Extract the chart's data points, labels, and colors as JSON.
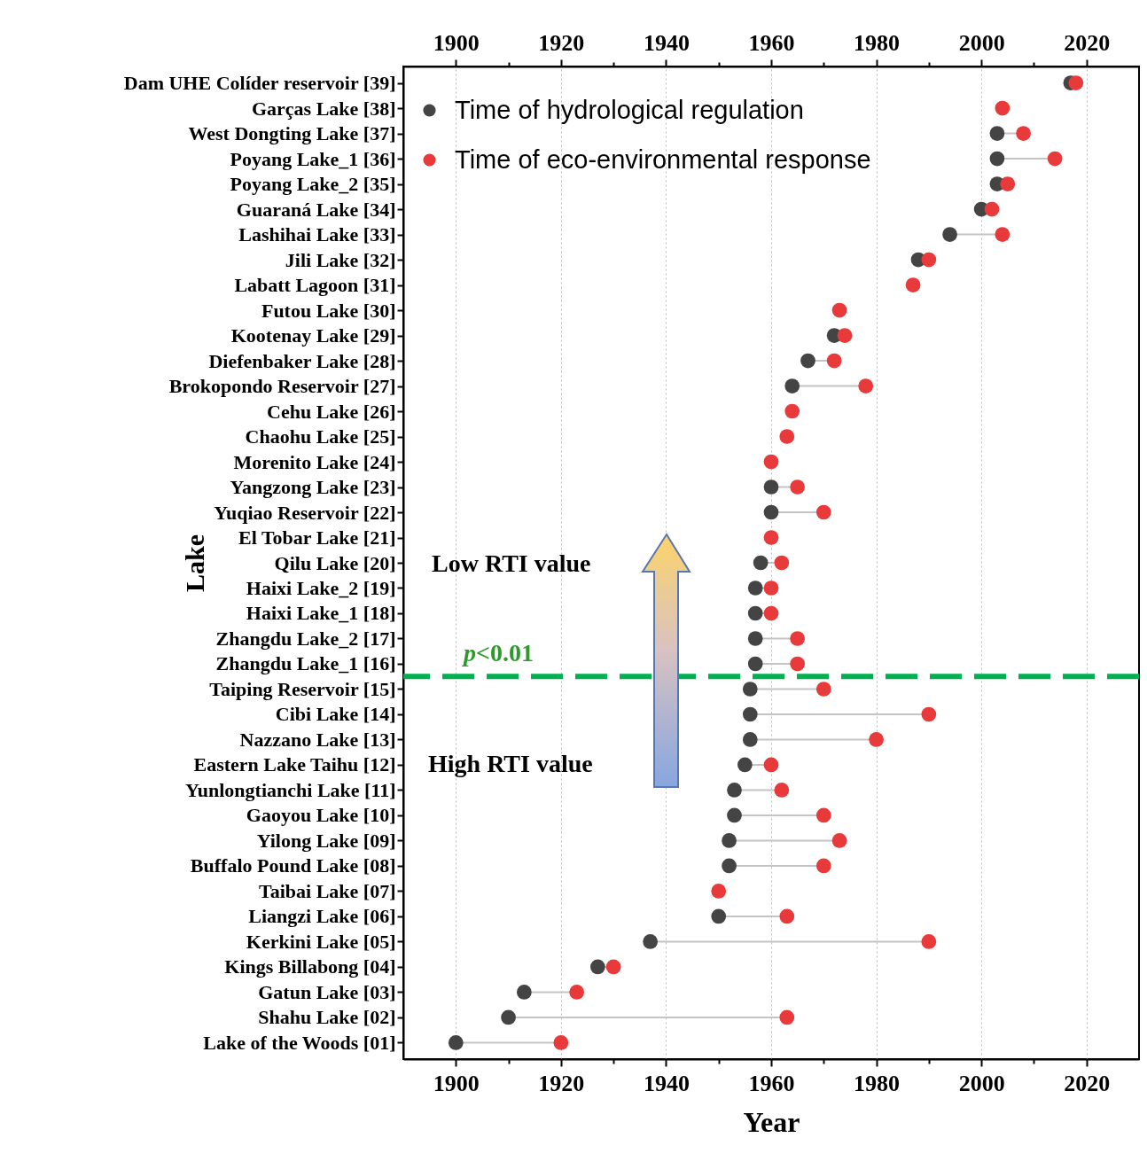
{
  "chart_data": {
    "type": "scatter",
    "xlabel": "Year",
    "ylabel": "Lake",
    "categories": [
      "Dam UHE Colíder reservoir [39]",
      "Garças Lake [38]",
      "West Dongting Lake [37]",
      "Poyang Lake_1 [36]",
      "Poyang Lake_2 [35]",
      "Guaraná Lake [34]",
      "Lashihai Lake [33]",
      "Jili Lake [32]",
      "Labatt Lagoon [31]",
      "Futou Lake [30]",
      "Kootenay Lake [29]",
      "Diefenbaker Lake [28]",
      "Brokopondo Reservoir [27]",
      "Cehu Lake [26]",
      "Chaohu Lake [25]",
      "Morenito Lake [24]",
      "Yangzong Lake [23]",
      "Yuqiao Reservoir [22]",
      "El Tobar Lake [21]",
      "Qilu Lake [20]",
      "Haixi Lake_2 [19]",
      "Haixi Lake_1 [18]",
      "Zhangdu Lake_2 [17]",
      "Zhangdu Lake_1 [16]",
      "Taiping Reservoir [15]",
      "Cibi Lake [14]",
      "Nazzano Lake [13]",
      "Eastern Lake Taihu [12]",
      "Yunlongtianchi Lake [11]",
      "Gaoyou Lake [10]",
      "Yilong Lake [09]",
      "Buffalo Pound Lake [08]",
      "Taibai Lake [07]",
      "Liangzi Lake [06]",
      "Kerkini Lake [05]",
      "Kings Billabong [04]",
      "Gatun Lake [03]",
      "Shahu Lake [02]",
      "Lake of the Woods [01]"
    ],
    "series": [
      {
        "name": "Time of hydrological regulation",
        "color": "#444444",
        "values": [
          2017,
          null,
          2003,
          2003,
          2003,
          2000,
          1994,
          1988,
          null,
          null,
          1972,
          1967,
          1964,
          null,
          null,
          null,
          1960,
          1960,
          null,
          1958,
          1957,
          1957,
          1957,
          1957,
          1956,
          1956,
          1956,
          1955,
          1953,
          1953,
          1952,
          1952,
          null,
          1950,
          1937,
          1927,
          1913,
          1910,
          1900
        ]
      },
      {
        "name": "Time of eco-environmental response",
        "color": "#e83a3a",
        "values": [
          2018,
          2004,
          2008,
          2014,
          2005,
          2002,
          2004,
          1990,
          1987,
          1973,
          1974,
          1972,
          1978,
          1964,
          1963,
          1960,
          1965,
          1970,
          1960,
          1962,
          1960,
          1960,
          1965,
          1965,
          1970,
          1990,
          1980,
          1960,
          1962,
          1970,
          1973,
          1970,
          1950,
          1963,
          1990,
          1930,
          1923,
          1963,
          1920
        ]
      }
    ],
    "xlim": [
      1890,
      2030
    ],
    "xticks": [
      1900,
      {
        "value": 1910,
        "label": null
      },
      1920,
      {
        "value": 1930,
        "label": null
      },
      1940,
      {
        "value": 1950,
        "label": null
      },
      1960,
      {
        "value": 1970,
        "label": null
      },
      1980,
      {
        "value": 1990,
        "label": null
      },
      2000,
      {
        "value": 2010,
        "label": null
      },
      2020
    ],
    "x2lim": [
      1890,
      2030
    ],
    "x2ticks": [
      1900,
      {
        "value": 1910,
        "label": null
      },
      1920,
      {
        "value": 1930,
        "label": null
      },
      1940,
      {
        "value": 1950,
        "label": null
      },
      1960,
      {
        "value": 1970,
        "label": null
      },
      1980,
      {
        "value": 1990,
        "label": null
      },
      2000,
      {
        "value": 2010,
        "label": null
      },
      2020
    ],
    "ref_lines": [
      {
        "axis": "y",
        "value": "Zhangdu Lake_1 [16]",
        "label": "p<0.01",
        "color": "#00b050",
        "line_style": "dashed"
      }
    ],
    "annotations": [
      "Low RTI value",
      "High RTI value"
    ],
    "orientation": "horizontal",
    "grid": "x",
    "legend": "top left",
    "marker": "circle"
  }
}
